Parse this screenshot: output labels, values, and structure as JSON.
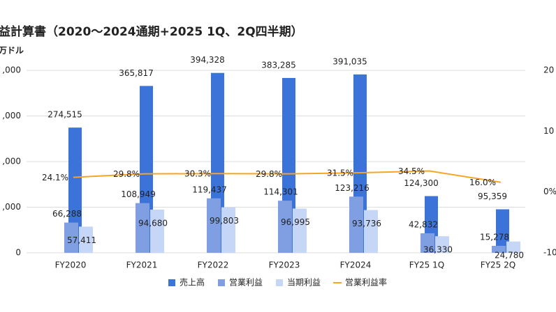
{
  "chart_data": {
    "type": "bar-line",
    "title": "益計算書（2020〜2024通期+2025 1Q、2Q四半期）",
    "y_label": "万ドル",
    "categories": [
      "FY2020",
      "FY2021",
      "FY2022",
      "FY2023",
      "FY2024",
      "FY25 1Q",
      "FY25 2Q"
    ],
    "series": [
      {
        "name": "売上高",
        "color": "#3b73d9",
        "values": [
          274515,
          365817,
          394328,
          383285,
          391035,
          124300,
          95359
        ],
        "value_labels": [
          "274,515",
          "365,817",
          "394,328",
          "383,285",
          "391,035",
          "124,300",
          "95,359"
        ]
      },
      {
        "name": "営業利益",
        "color": "#7f9fe2",
        "values": [
          66288,
          108949,
          119437,
          114301,
          123216,
          42832,
          15278
        ],
        "value_labels": [
          "66,288",
          "108,949",
          "119,437",
          "114,301",
          "123,216",
          "42,832",
          "15,278"
        ]
      },
      {
        "name": "当期利益",
        "color": "#c6d6f6",
        "values": [
          57411,
          94680,
          99803,
          96995,
          93736,
          36330,
          24780
        ],
        "value_labels": [
          "57,411",
          "94,680",
          "99,803",
          "96,995",
          "93,736",
          "36,330",
          "24,780"
        ]
      },
      {
        "name": "営業利益率",
        "color": "#f5a623",
        "axis": "y2",
        "values": [
          24.1,
          29.8,
          30.3,
          29.8,
          31.5,
          34.5,
          16.0
        ],
        "value_labels": [
          "24.1%",
          "29.8%",
          "30.3%",
          "29.8%",
          "31.5%",
          "34.5%",
          "16.0%"
        ]
      }
    ],
    "ylim": [
      0,
      400000
    ],
    "yticks": [
      0,
      {
        "value": 100000,
        "label": ",000"
      },
      {
        "value": 200000,
        "label": ",000"
      },
      {
        "value": 300000,
        "label": ",000"
      },
      {
        "value": 400000,
        "label": ",000"
      }
    ],
    "y2lim": [
      -100,
      200
    ],
    "y2ticks": [
      {
        "value": -100,
        "label": "-10"
      },
      {
        "value": 0,
        "label": "0%"
      },
      {
        "value": 100,
        "label": "10"
      },
      {
        "value": 200,
        "label": "20"
      }
    ],
    "grid": true,
    "legend": "bottom"
  }
}
